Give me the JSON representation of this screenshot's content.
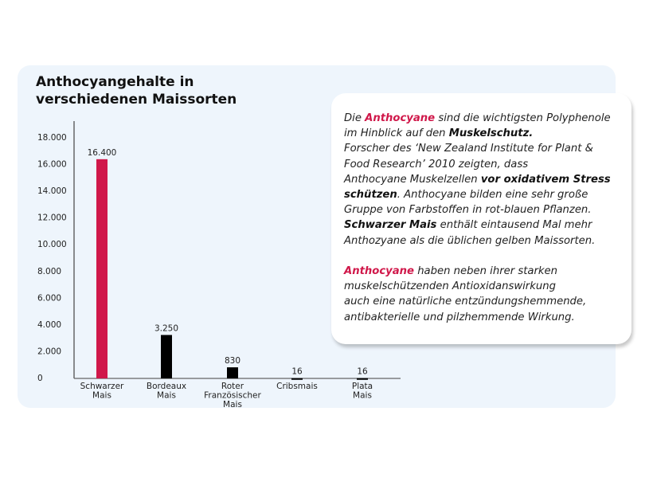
{
  "chart_data": {
    "type": "bar",
    "title_lines": [
      "Anthocyangehalte in",
      "verschiedenen Maissorten"
    ],
    "categories": [
      [
        "Schwarzer",
        "Mais"
      ],
      [
        "Bordeaux",
        "Mais"
      ],
      [
        "Roter",
        "Französischer",
        "Mais"
      ],
      [
        "Cribsmais"
      ],
      [
        "Plata",
        "Mais"
      ]
    ],
    "values": [
      16400,
      3250,
      830,
      16,
      16
    ],
    "value_labels": [
      "16.400",
      "3.250",
      "830",
      "16",
      "16"
    ],
    "yticks": [
      0,
      2000,
      4000,
      6000,
      8000,
      10000,
      12000,
      14000,
      16000,
      18000
    ],
    "ytick_labels": [
      "0",
      "2.000",
      "4.000",
      "6.000",
      "8.000",
      "10.000",
      "12.000",
      "14.000",
      "16.000",
      "18.000"
    ],
    "ylim": [
      0,
      18000
    ],
    "grid": false,
    "colors": [
      "#d0184a",
      "#000000",
      "#000000",
      "#000000",
      "#000000"
    ]
  },
  "textbox": {
    "paragraphs": [
      [
        [
          [
            "Die ",
            ""
          ],
          [
            "Anthocyane",
            "hl"
          ],
          [
            " sind die wichtigsten Polyphenole",
            ""
          ]
        ],
        [
          [
            "im Hinblick auf den ",
            ""
          ],
          [
            "Muskelschutz.",
            "b"
          ]
        ],
        [
          [
            "Forscher des ‘New Zealand Institute for Plant &",
            ""
          ]
        ],
        [
          [
            "Food Research’ 2010 zeigten, dass",
            ""
          ]
        ],
        [
          [
            "Anthocyane Muskelzellen ",
            ""
          ],
          [
            "vor oxidativem Stress",
            "b"
          ]
        ],
        [
          [
            "schützen",
            "b"
          ],
          [
            ".  Anthocyane bilden eine sehr große",
            ""
          ]
        ],
        [
          [
            "Gruppe von Farbstoffen in rot-blauen Pflanzen.",
            ""
          ]
        ],
        [
          [
            "Schwarzer Mais",
            "b"
          ],
          [
            "  enthält eintausend Mal mehr",
            ""
          ]
        ],
        [
          [
            "Anthozyane als die üblichen gelben Maissorten.",
            ""
          ]
        ]
      ],
      [
        [
          [
            "Anthocyane",
            "hl"
          ],
          [
            " haben neben ihrer starken",
            ""
          ]
        ],
        [
          [
            "muskelschützenden Antioxidanswirkung",
            ""
          ]
        ],
        [
          [
            "auch eine natürliche entzündungshemmende,",
            ""
          ]
        ],
        [
          [
            "antibakterielle und pilzhemmende Wirkung.",
            ""
          ]
        ]
      ]
    ]
  }
}
